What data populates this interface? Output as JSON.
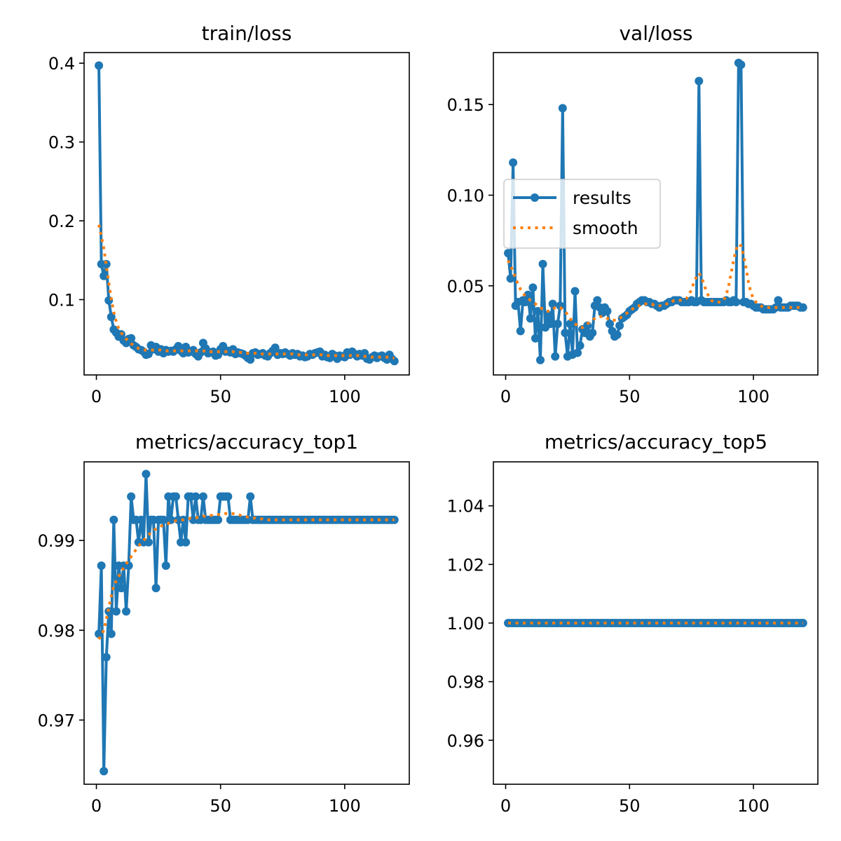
{
  "colors": {
    "results": "#1f77b4",
    "smooth": "#ff7f0e",
    "frame": "#000000"
  },
  "chart_data": [
    {
      "type": "line",
      "title": "train/loss",
      "xlim": [
        -4.95,
        126.0
      ],
      "ylim": [
        0.0044,
        0.4135
      ],
      "xticks": [
        0,
        50,
        100
      ],
      "yticks": [
        0.1,
        0.2,
        0.3,
        0.4
      ],
      "ytick_labels": [
        "0.1",
        "0.2",
        "0.3",
        "0.4"
      ],
      "series": [
        {
          "name": "results",
          "style": "line-markers",
          "values": [
            0.397,
            0.145,
            0.13,
            0.145,
            0.099,
            0.078,
            0.062,
            0.058,
            0.053,
            0.056,
            0.048,
            0.045,
            0.05,
            0.051,
            0.042,
            0.04,
            0.037,
            0.036,
            0.034,
            0.03,
            0.031,
            0.042,
            0.037,
            0.04,
            0.034,
            0.037,
            0.032,
            0.036,
            0.034,
            0.035,
            0.034,
            0.037,
            0.041,
            0.035,
            0.032,
            0.04,
            0.033,
            0.034,
            0.036,
            0.031,
            0.028,
            0.033,
            0.045,
            0.038,
            0.032,
            0.033,
            0.034,
            0.029,
            0.03,
            0.037,
            0.041,
            0.034,
            0.035,
            0.033,
            0.037,
            0.031,
            0.033,
            0.032,
            0.031,
            0.029,
            0.026,
            0.024,
            0.032,
            0.033,
            0.03,
            0.031,
            0.032,
            0.029,
            0.028,
            0.032,
            0.035,
            0.039,
            0.03,
            0.032,
            0.031,
            0.033,
            0.031,
            0.029,
            0.032,
            0.03,
            0.031,
            0.028,
            0.029,
            0.027,
            0.028,
            0.031,
            0.03,
            0.032,
            0.033,
            0.034,
            0.028,
            0.03,
            0.027,
            0.026,
            0.031,
            0.029,
            0.025,
            0.029,
            0.028,
            0.027,
            0.033,
            0.03,
            0.034,
            0.031,
            0.028,
            0.031,
            0.029,
            0.032,
            0.025,
            0.024,
            0.027,
            0.029,
            0.026,
            0.028,
            0.029,
            0.026,
            0.024,
            0.03,
            0.025,
            0.022
          ]
        },
        {
          "name": "smooth",
          "style": "dotted",
          "values": [
            0.195,
            0.18,
            0.165,
            0.143,
            0.121,
            0.101,
            0.084,
            0.072,
            0.063,
            0.058,
            0.054,
            0.05,
            0.047,
            0.044,
            0.042,
            0.04,
            0.038,
            0.037,
            0.036,
            0.036,
            0.036,
            0.036,
            0.036,
            0.036,
            0.036,
            0.036,
            0.035,
            0.035,
            0.035,
            0.035,
            0.035,
            0.035,
            0.035,
            0.035,
            0.035,
            0.035,
            0.035,
            0.035,
            0.035,
            0.035,
            0.035,
            0.035,
            0.035,
            0.034,
            0.034,
            0.034,
            0.034,
            0.034,
            0.034,
            0.034,
            0.034,
            0.034,
            0.034,
            0.034,
            0.034,
            0.033,
            0.033,
            0.033,
            0.033,
            0.032,
            0.032,
            0.032,
            0.032,
            0.032,
            0.032,
            0.031,
            0.031,
            0.031,
            0.031,
            0.031,
            0.031,
            0.031,
            0.031,
            0.031,
            0.031,
            0.031,
            0.031,
            0.031,
            0.031,
            0.03,
            0.03,
            0.03,
            0.03,
            0.03,
            0.03,
            0.03,
            0.03,
            0.03,
            0.03,
            0.03,
            0.03,
            0.029,
            0.029,
            0.029,
            0.029,
            0.029,
            0.029,
            0.029,
            0.029,
            0.029,
            0.029,
            0.029,
            0.029,
            0.029,
            0.029,
            0.029,
            0.029,
            0.028,
            0.028,
            0.028,
            0.027,
            0.027,
            0.027,
            0.027,
            0.027,
            0.027,
            0.027,
            0.026,
            0.026,
            0.026
          ]
        }
      ]
    },
    {
      "type": "line",
      "title": "val/loss",
      "xlim": [
        -4.95,
        126.0
      ],
      "ylim": [
        0.0008,
        0.1787
      ],
      "xticks": [
        0,
        50,
        100
      ],
      "yticks": [
        0.05,
        0.1,
        0.15
      ],
      "ytick_labels": [
        "0.05",
        "0.10",
        "0.15"
      ],
      "legend": {
        "position": "center-left",
        "entries": [
          "results",
          "smooth"
        ]
      },
      "series": [
        {
          "name": "results",
          "style": "line-markers",
          "values": [
            0.068,
            0.054,
            0.118,
            0.039,
            0.041,
            0.025,
            0.042,
            0.041,
            0.045,
            0.032,
            0.049,
            0.021,
            0.036,
            0.009,
            0.062,
            0.027,
            0.034,
            0.029,
            0.04,
            0.011,
            0.029,
            0.039,
            0.148,
            0.024,
            0.011,
            0.029,
            0.012,
            0.047,
            0.013,
            0.017,
            0.026,
            0.024,
            0.028,
            0.022,
            0.024,
            0.039,
            0.042,
            0.038,
            0.035,
            0.038,
            0.036,
            0.029,
            0.025,
            0.022,
            0.023,
            0.028,
            0.032,
            0.033,
            0.034,
            0.036,
            0.037,
            0.038,
            0.04,
            0.041,
            0.042,
            0.042,
            0.041,
            0.041,
            0.04,
            0.04,
            0.039,
            0.038,
            0.039,
            0.039,
            0.04,
            0.041,
            0.041,
            0.042,
            0.042,
            0.042,
            0.041,
            0.041,
            0.041,
            0.041,
            0.042,
            0.041,
            0.041,
            0.163,
            0.042,
            0.041,
            0.041,
            0.041,
            0.041,
            0.041,
            0.041,
            0.041,
            0.041,
            0.041,
            0.042,
            0.041,
            0.041,
            0.042,
            0.041,
            0.173,
            0.172,
            0.041,
            0.041,
            0.04,
            0.04,
            0.039,
            0.038,
            0.038,
            0.038,
            0.037,
            0.037,
            0.037,
            0.037,
            0.037,
            0.038,
            0.042,
            0.038,
            0.038,
            0.038,
            0.038,
            0.039,
            0.039,
            0.039,
            0.039,
            0.038,
            0.038
          ]
        },
        {
          "name": "smooth",
          "style": "dotted",
          "values": [
            0.064,
            0.061,
            0.058,
            0.054,
            0.051,
            0.048,
            0.046,
            0.044,
            0.043,
            0.042,
            0.041,
            0.04,
            0.039,
            0.038,
            0.037,
            0.036,
            0.036,
            0.036,
            0.037,
            0.038,
            0.038,
            0.038,
            0.037,
            0.036,
            0.034,
            0.032,
            0.03,
            0.029,
            0.028,
            0.027,
            0.027,
            0.028,
            0.029,
            0.03,
            0.031,
            0.032,
            0.033,
            0.033,
            0.033,
            0.033,
            0.032,
            0.032,
            0.031,
            0.031,
            0.031,
            0.032,
            0.033,
            0.034,
            0.035,
            0.036,
            0.037,
            0.038,
            0.039,
            0.039,
            0.04,
            0.04,
            0.04,
            0.04,
            0.04,
            0.039,
            0.039,
            0.039,
            0.039,
            0.04,
            0.04,
            0.041,
            0.041,
            0.042,
            0.042,
            0.042,
            0.042,
            0.042,
            0.043,
            0.045,
            0.048,
            0.052,
            0.055,
            0.057,
            0.055,
            0.051,
            0.047,
            0.044,
            0.042,
            0.041,
            0.041,
            0.041,
            0.041,
            0.042,
            0.045,
            0.05,
            0.057,
            0.064,
            0.07,
            0.073,
            0.072,
            0.067,
            0.06,
            0.052,
            0.046,
            0.043,
            0.041,
            0.04,
            0.039,
            0.038,
            0.038,
            0.038,
            0.038,
            0.038,
            0.038,
            0.038,
            0.038,
            0.038,
            0.038,
            0.038,
            0.038,
            0.038,
            0.038,
            0.038,
            0.038,
            0.038
          ]
        }
      ]
    },
    {
      "type": "line",
      "title": "metrics/accuracy_top1",
      "xlim": [
        -4.95,
        126.0
      ],
      "ylim": [
        0.96285,
        0.99876
      ],
      "xticks": [
        0,
        50,
        100
      ],
      "yticks": [
        0.97,
        0.98,
        0.99
      ],
      "ytick_labels": [
        "0.97",
        "0.98",
        "0.99"
      ],
      "series": [
        {
          "name": "results",
          "style": "line-markers",
          "values": [
            0.9796,
            0.9872,
            0.9643,
            0.977,
            0.9821,
            0.9796,
            0.9923,
            0.9821,
            0.9872,
            0.9847,
            0.9872,
            0.9821,
            0.9872,
            0.9949,
            0.9923,
            0.9923,
            0.9898,
            0.9923,
            0.9898,
            0.9974,
            0.9898,
            0.9923,
            0.9923,
            0.9847,
            0.9923,
            0.9923,
            0.9923,
            0.9872,
            0.9949,
            0.9923,
            0.9949,
            0.9949,
            0.9923,
            0.9898,
            0.9923,
            0.9898,
            0.9949,
            0.9949,
            0.9923,
            0.9949,
            0.9923,
            0.9923,
            0.9949,
            0.9923,
            0.9923,
            0.9923,
            0.9923,
            0.9923,
            0.9923,
            0.9949,
            0.9949,
            0.9949,
            0.9949,
            0.9923,
            0.9923,
            0.9923,
            0.9923,
            0.9923,
            0.9923,
            0.9923,
            0.9923,
            0.9949,
            0.9923,
            0.9923,
            0.9923,
            0.9923,
            0.9923,
            0.9923,
            0.9923,
            0.9923,
            0.9923,
            0.9923,
            0.9923,
            0.9923,
            0.9923,
            0.9923,
            0.9923,
            0.9923,
            0.9923,
            0.9923,
            0.9923,
            0.9923,
            0.9923,
            0.9923,
            0.9923,
            0.9923,
            0.9923,
            0.9923,
            0.9923,
            0.9923,
            0.9923,
            0.9923,
            0.9923,
            0.9923,
            0.9923,
            0.9923,
            0.9923,
            0.9923,
            0.9923,
            0.9923,
            0.9923,
            0.9923,
            0.9923,
            0.9923,
            0.9923,
            0.9923,
            0.9923,
            0.9923,
            0.9923,
            0.9923,
            0.9923,
            0.9923,
            0.9923,
            0.9923,
            0.9923,
            0.9923,
            0.9923,
            0.9923,
            0.9923,
            0.9923
          ]
        },
        {
          "name": "smooth",
          "style": "dotted",
          "values": [
            0.979,
            0.9795,
            0.98,
            0.9812,
            0.9825,
            0.9838,
            0.985,
            0.9855,
            0.986,
            0.9865,
            0.987,
            0.9874,
            0.9878,
            0.9882,
            0.9886,
            0.989,
            0.9894,
            0.9897,
            0.99,
            0.9903,
            0.9906,
            0.9909,
            0.9911,
            0.9913,
            0.9915,
            0.9916,
            0.9917,
            0.9918,
            0.9919,
            0.992,
            0.9921,
            0.9922,
            0.9922,
            0.9923,
            0.9923,
            0.9924,
            0.9924,
            0.9925,
            0.9925,
            0.9925,
            0.9926,
            0.9926,
            0.9927,
            0.9927,
            0.9928,
            0.9928,
            0.9928,
            0.9929,
            0.9929,
            0.9929,
            0.993,
            0.993,
            0.993,
            0.993,
            0.993,
            0.9929,
            0.9929,
            0.9928,
            0.9927,
            0.9927,
            0.9926,
            0.9926,
            0.9925,
            0.9925,
            0.9924,
            0.9924,
            0.9924,
            0.9923,
            0.9923,
            0.9923,
            0.9923,
            0.9923,
            0.9923,
            0.9923,
            0.9923,
            0.9923,
            0.9923,
            0.9923,
            0.9923,
            0.9923,
            0.9923,
            0.9923,
            0.9923,
            0.9923,
            0.9923,
            0.9923,
            0.9923,
            0.9923,
            0.9923,
            0.9923,
            0.9923,
            0.9923,
            0.9923,
            0.9923,
            0.9923,
            0.9923,
            0.9923,
            0.9923,
            0.9923,
            0.9923,
            0.9923,
            0.9923,
            0.9923,
            0.9923,
            0.9923,
            0.9923,
            0.9923,
            0.9923,
            0.9923,
            0.9923,
            0.9923,
            0.9923,
            0.9923,
            0.9923,
            0.9923,
            0.9923,
            0.9923,
            0.9923,
            0.9923,
            0.9923
          ]
        }
      ]
    },
    {
      "type": "line",
      "title": "metrics/accuracy_top5",
      "xlim": [
        -4.95,
        126.0
      ],
      "ylim": [
        0.945,
        1.055
      ],
      "xticks": [
        0,
        50,
        100
      ],
      "yticks": [
        0.96,
        0.98,
        1.0,
        1.02,
        1.04
      ],
      "ytick_labels": [
        "0.96",
        "0.98",
        "1.00",
        "1.02",
        "1.04"
      ],
      "series": [
        {
          "name": "results",
          "style": "line-markers",
          "constant": 1.0
        },
        {
          "name": "smooth",
          "style": "dotted",
          "constant": 1.0
        }
      ]
    }
  ]
}
